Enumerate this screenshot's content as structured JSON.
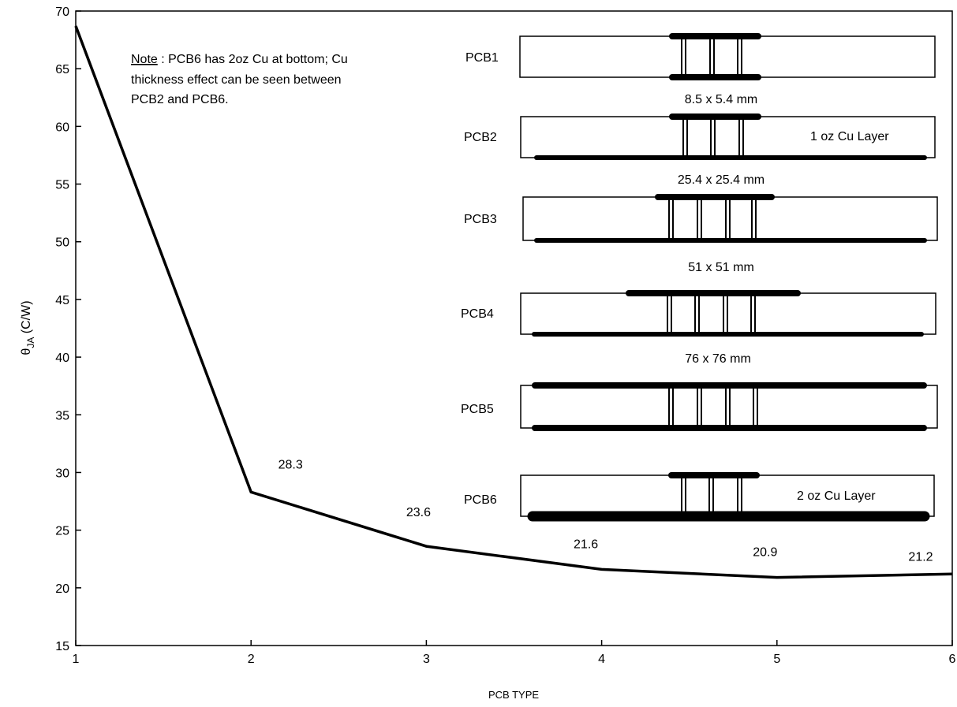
{
  "chart_data": {
    "type": "line",
    "xlabel": "PCB TYPE",
    "ylabel_main": "θ",
    "ylabel_sub": "JA",
    "ylabel_unit": " (C/W)",
    "xlim": [
      1,
      6
    ],
    "ylim": [
      15,
      70
    ],
    "x_ticks": [
      1,
      2,
      3,
      4,
      5,
      6
    ],
    "y_ticks": [
      15,
      20,
      25,
      30,
      35,
      40,
      45,
      50,
      55,
      60,
      65,
      70
    ],
    "series": [
      {
        "x": [
          1,
          2,
          3,
          4,
          5,
          6
        ],
        "y": [
          68.7,
          28.3,
          23.6,
          21.6,
          20.9,
          21.2
        ]
      }
    ],
    "data_labels": [
      "",
      "28.3",
      "23.6",
      "21.6",
      "20.9",
      "21.2"
    ],
    "grid": false,
    "line_color": "#000000"
  },
  "note": {
    "label": "Note",
    "line1": " : PCB6 has 2oz Cu at bottom; Cu",
    "line2": "thickness effect can be seen between",
    "line3": "PCB2 and PCB6."
  },
  "inset": {
    "boards": [
      {
        "name": "PCB1",
        "top_copper": "short",
        "bottom_copper": "short",
        "vias": 3,
        "layer_label": ""
      },
      {
        "name": "PCB2",
        "top_copper": "short",
        "bottom_copper": "full",
        "vias": 3,
        "layer_label": "1 oz Cu Layer"
      },
      {
        "name": "PCB3",
        "top_copper": "medium",
        "bottom_copper": "full",
        "vias": 4,
        "layer_label": ""
      },
      {
        "name": "PCB4",
        "top_copper": "wide",
        "bottom_copper": "full",
        "vias": 4,
        "layer_label": ""
      },
      {
        "name": "PCB5",
        "top_copper": "full",
        "bottom_copper": "full",
        "vias": 4,
        "layer_label": ""
      },
      {
        "name": "PCB6",
        "top_copper": "short",
        "bottom_copper": "full-thick",
        "vias": 3,
        "layer_label": "2 oz Cu Layer"
      }
    ],
    "sizes": [
      "8.5 x 5.4 mm",
      "25.4 x 25.4 mm",
      "51 x 51 mm",
      "76 x 76 mm"
    ]
  }
}
